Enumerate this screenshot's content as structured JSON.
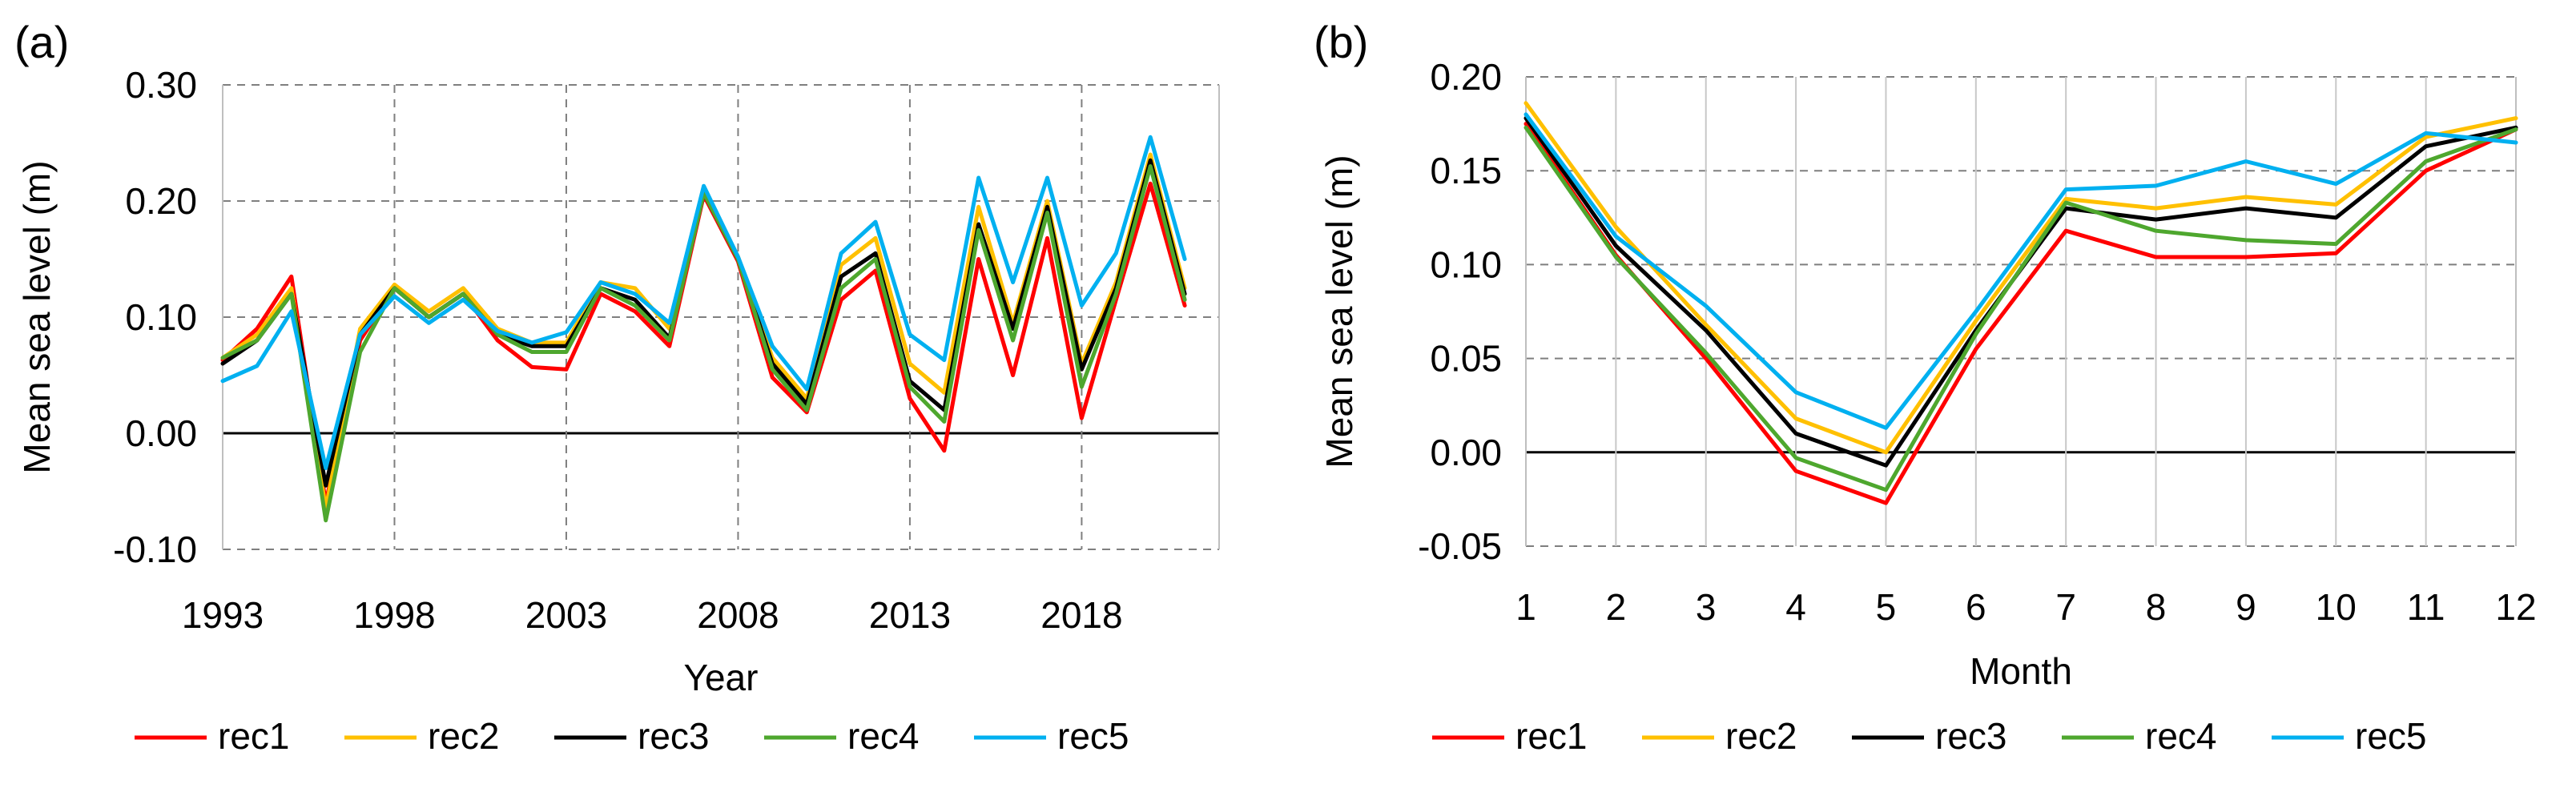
{
  "chart_data": [
    {
      "panel_label": "(a)",
      "type": "line",
      "title": "",
      "xlabel": "Year",
      "ylabel": "Mean sea level (m)",
      "x": [
        1993,
        1994,
        1995,
        1996,
        1997,
        1998,
        1999,
        2000,
        2001,
        2002,
        2003,
        2004,
        2005,
        2006,
        2007,
        2008,
        2009,
        2010,
        2011,
        2012,
        2013,
        2014,
        2015,
        2016,
        2017,
        2018,
        2019,
        2020,
        2021
      ],
      "xlim": [
        1993,
        2022
      ],
      "ylim": [
        -0.1,
        0.3
      ],
      "xticks": [
        "1993",
        "1998",
        "2003",
        "2008",
        "2013",
        "2018"
      ],
      "yticks": [
        "-0.10",
        "0.00",
        "0.10",
        "0.20",
        "0.30"
      ],
      "grid": "dashed",
      "legend_position": "bottom",
      "series": [
        {
          "name": "rec1",
          "color": "#ff0000",
          "values": [
            0.063,
            0.09,
            0.135,
            -0.06,
            0.08,
            0.125,
            0.1,
            0.12,
            0.08,
            0.057,
            0.055,
            0.12,
            0.105,
            0.075,
            0.205,
            0.148,
            0.048,
            0.018,
            0.115,
            0.14,
            0.03,
            -0.015,
            0.15,
            0.05,
            0.168,
            0.013,
            0.115,
            0.215,
            0.11
          ]
        },
        {
          "name": "rec2",
          "color": "#ffc000",
          "values": [
            0.065,
            0.085,
            0.125,
            -0.065,
            0.09,
            0.128,
            0.105,
            0.125,
            0.09,
            0.078,
            0.078,
            0.13,
            0.125,
            0.09,
            0.21,
            0.152,
            0.065,
            0.03,
            0.145,
            0.168,
            0.06,
            0.035,
            0.195,
            0.095,
            0.2,
            0.06,
            0.13,
            0.24,
            0.125
          ]
        },
        {
          "name": "rec3",
          "color": "#000000",
          "values": [
            0.06,
            0.08,
            0.12,
            -0.045,
            0.085,
            0.125,
            0.1,
            0.12,
            0.085,
            0.075,
            0.075,
            0.125,
            0.115,
            0.082,
            0.207,
            0.15,
            0.06,
            0.025,
            0.135,
            0.155,
            0.045,
            0.02,
            0.18,
            0.09,
            0.195,
            0.055,
            0.125,
            0.235,
            0.12
          ]
        },
        {
          "name": "rec4",
          "color": "#4ea72e",
          "values": [
            0.065,
            0.08,
            0.12,
            -0.075,
            0.07,
            0.125,
            0.1,
            0.12,
            0.085,
            0.07,
            0.07,
            0.125,
            0.11,
            0.08,
            0.207,
            0.15,
            0.055,
            0.02,
            0.125,
            0.15,
            0.04,
            0.01,
            0.175,
            0.08,
            0.19,
            0.04,
            0.12,
            0.23,
            0.115
          ]
        },
        {
          "name": "rec5",
          "color": "#00b0f0",
          "values": [
            0.045,
            0.058,
            0.105,
            -0.03,
            0.085,
            0.118,
            0.095,
            0.115,
            0.088,
            0.078,
            0.087,
            0.13,
            0.12,
            0.095,
            0.213,
            0.152,
            0.075,
            0.038,
            0.155,
            0.182,
            0.085,
            0.063,
            0.22,
            0.13,
            0.22,
            0.11,
            0.155,
            0.255,
            0.15
          ]
        }
      ]
    },
    {
      "panel_label": "(b)",
      "type": "line",
      "title": "",
      "xlabel": "Month",
      "ylabel": "Mean sea level (m)",
      "x": [
        1,
        2,
        3,
        4,
        5,
        6,
        7,
        8,
        9,
        10,
        11,
        12
      ],
      "xlim": [
        1,
        12
      ],
      "ylim": [
        -0.05,
        0.2
      ],
      "xticks": [
        "1",
        "2",
        "3",
        "4",
        "5",
        "6",
        "7",
        "8",
        "9",
        "10",
        "11",
        "12"
      ],
      "yticks": [
        "-0.05",
        "0.00",
        "0.05",
        "0.10",
        "0.15",
        "0.20"
      ],
      "grid": "dashed horizontal, solid vertical",
      "legend_position": "bottom",
      "series": [
        {
          "name": "rec1",
          "color": "#ff0000",
          "values": [
            0.175,
            0.105,
            0.05,
            -0.01,
            -0.027,
            0.055,
            0.118,
            0.104,
            0.104,
            0.106,
            0.15,
            0.172
          ]
        },
        {
          "name": "rec2",
          "color": "#ffc000",
          "values": [
            0.186,
            0.12,
            0.068,
            0.018,
            0.0,
            0.07,
            0.135,
            0.13,
            0.136,
            0.132,
            0.168,
            0.178
          ]
        },
        {
          "name": "rec3",
          "color": "#000000",
          "values": [
            0.178,
            0.11,
            0.065,
            0.01,
            -0.007,
            0.065,
            0.13,
            0.124,
            0.13,
            0.125,
            0.163,
            0.173
          ]
        },
        {
          "name": "rec4",
          "color": "#4ea72e",
          "values": [
            0.173,
            0.104,
            0.053,
            -0.003,
            -0.02,
            0.063,
            0.133,
            0.118,
            0.113,
            0.111,
            0.155,
            0.172
          ]
        },
        {
          "name": "rec5",
          "color": "#00b0f0",
          "values": [
            0.18,
            0.115,
            0.078,
            0.032,
            0.013,
            0.075,
            0.14,
            0.142,
            0.155,
            0.143,
            0.17,
            0.165
          ]
        }
      ]
    }
  ]
}
